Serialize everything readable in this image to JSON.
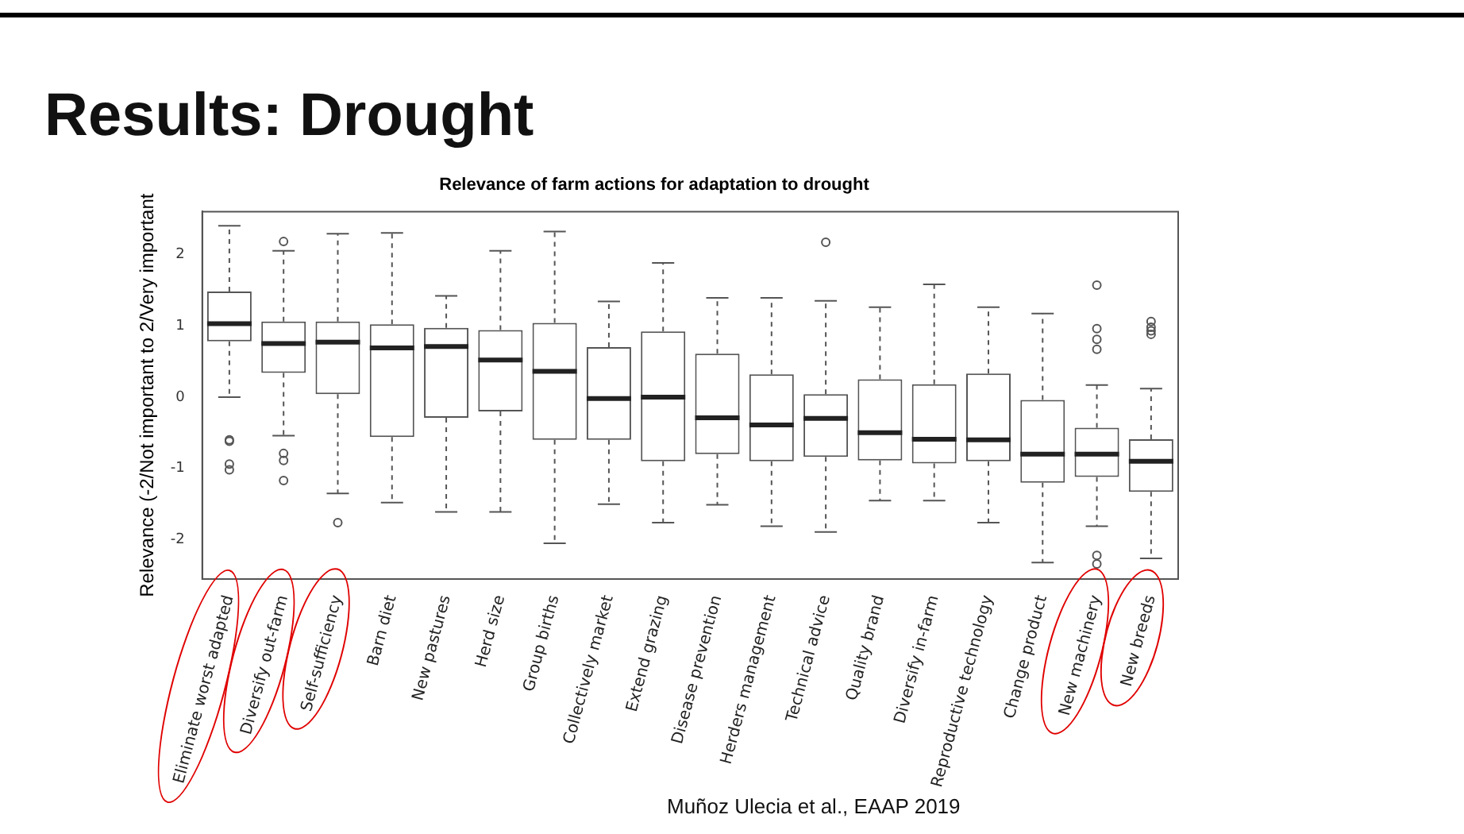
{
  "chart_data": {
    "type": "box",
    "title": "Relevance of farm actions for adaptation to drought",
    "subtitle": "Results: Drought",
    "ylabel": "Relevance (-2/Not important to 2/Very important",
    "color": "#555555",
    "categories": [
      "Eliminate worst adapted",
      "Diversify out-farm",
      "Self-sufficiency",
      "Barn diet",
      "New pastures",
      "Herd size",
      "Group births",
      "Collectively market",
      "Extend grazing",
      "Disease prevention",
      "Herders management",
      "Technical advice",
      "Quality brand",
      "Diversify in-farm",
      "Reproductive technology",
      "Change product",
      "New machinery",
      "New breeds"
    ],
    "boxes": [
      {
        "low": 0,
        "q1": 0.78,
        "median": 1.03,
        "q3": 1.48,
        "high": 2.4,
        "outliers": [
          -0.6,
          -0.62,
          -0.94,
          -1.02
        ]
      },
      {
        "low": -0.54,
        "q1": 0.34,
        "median": 0.75,
        "q3": 1.06,
        "high": 2.05,
        "outliers": [
          2.18,
          -0.79,
          -0.89,
          -1.17
        ]
      },
      {
        "low": -1.35,
        "q1": 0.04,
        "median": 0.77,
        "q3": 1.06,
        "high": 2.29,
        "outliers": [
          -1.76
        ]
      },
      {
        "low": -1.48,
        "q1": -0.56,
        "median": 0.69,
        "q3": 1.02,
        "high": 2.3
      },
      {
        "low": -1.61,
        "q1": -0.29,
        "median": 0.71,
        "q3": 0.97,
        "high": 1.42
      },
      {
        "low": -1.61,
        "q1": -0.2,
        "median": 0.52,
        "q3": 0.94,
        "high": 2.05
      },
      {
        "low": -2.05,
        "q1": -0.6,
        "median": 0.36,
        "q3": 1.04,
        "high": 2.32
      },
      {
        "low": -1.5,
        "q1": -0.6,
        "median": -0.02,
        "q3": 0.7,
        "high": 1.34
      },
      {
        "low": -1.76,
        "q1": -0.9,
        "median": 0,
        "q3": 0.92,
        "high": 1.88
      },
      {
        "low": -1.51,
        "q1": -0.8,
        "median": -0.29,
        "q3": 0.61,
        "high": 1.39
      },
      {
        "low": -1.81,
        "q1": -0.9,
        "median": -0.39,
        "q3": 0.32,
        "high": 1.39
      },
      {
        "low": -1.89,
        "q1": -0.84,
        "median": -0.3,
        "q3": 0.04,
        "high": 1.35,
        "outliers": [
          2.17
        ]
      },
      {
        "low": -1.45,
        "q1": -0.89,
        "median": -0.5,
        "q3": 0.25,
        "high": 1.26
      },
      {
        "low": -1.45,
        "q1": -0.93,
        "median": -0.59,
        "q3": 0.18,
        "high": 1.58
      },
      {
        "low": -1.76,
        "q1": -0.9,
        "median": -0.6,
        "q3": 0.33,
        "high": 1.26
      },
      {
        "low": -2.32,
        "q1": -1.2,
        "median": -0.8,
        "q3": -0.04,
        "high": 1.17
      },
      {
        "low": -1.81,
        "q1": -1.12,
        "median": -0.8,
        "q3": -0.43,
        "high": 0.17,
        "outliers": [
          1.57,
          0.96,
          0.81,
          0.67,
          -2.22,
          -2.34
        ]
      },
      {
        "low": -2.26,
        "q1": -1.33,
        "median": -0.9,
        "q3": -0.59,
        "high": 0.12,
        "outliers": [
          1.06,
          0.98,
          0.93,
          0.88
        ]
      }
    ],
    "ylim": [
      -2.55,
      2.6
    ],
    "yticks": [
      -2,
      -1,
      0,
      1,
      2
    ],
    "annotations": [
      "Muñoz Ulecia et al., EAAP 2019"
    ]
  }
}
